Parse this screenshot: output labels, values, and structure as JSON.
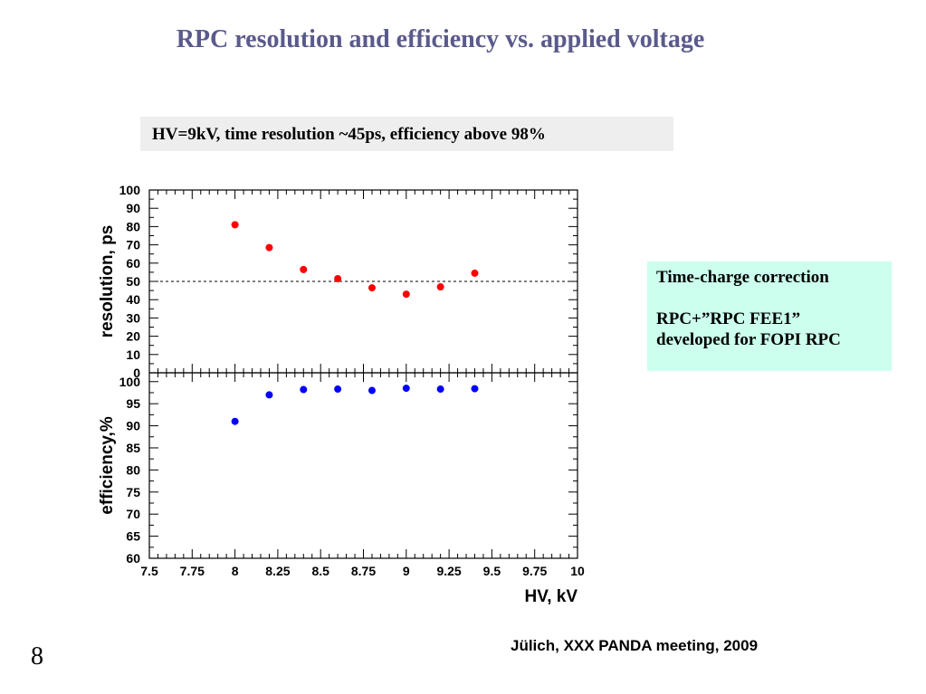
{
  "slide": {
    "title": "RPC resolution and efficiency vs. applied voltage",
    "note": "HV=9kV, time resolution ~45ps, efficiency above 98%",
    "callout_line1": "Time-charge correction",
    "callout_line2": "RPC+”RPC FEE1”",
    "callout_line3": "developed for FOPI RPC",
    "footer": "Jülich, XXX PANDA meeting, 2009",
    "page_number": "8"
  },
  "colors": {
    "title": "#5a5a8c",
    "note_bg": "#eeeeee",
    "callout_bg": "#ccffee",
    "resolution_points": "#ff0000",
    "efficiency_points": "#0000ff"
  },
  "chart_data": [
    {
      "type": "scatter",
      "panel": "top",
      "ylabel": "resolution, ps",
      "xlabel": "",
      "xlim": [
        7.5,
        10
      ],
      "ylim": [
        0,
        100
      ],
      "yticks": [
        0,
        10,
        20,
        30,
        40,
        50,
        60,
        70,
        80,
        90,
        100
      ],
      "reference_line": 50,
      "series": [
        {
          "color": "#ff0000",
          "x": [
            8.0,
            8.2,
            8.4,
            8.6,
            8.8,
            9.0,
            9.2,
            9.4
          ],
          "y": [
            81,
            68.5,
            56.5,
            51.5,
            46.5,
            43,
            47,
            54.5
          ]
        }
      ]
    },
    {
      "type": "scatter",
      "panel": "bottom",
      "ylabel": "efficiency,%",
      "xlabel": "HV, kV",
      "xlim": [
        7.5,
        10
      ],
      "ylim": [
        60,
        102
      ],
      "yticks": [
        60,
        65,
        70,
        75,
        80,
        85,
        90,
        95,
        100
      ],
      "xticks": [
        "7.5",
        "7.75",
        "8",
        "8.25",
        "8.5",
        "8.75",
        "9",
        "9.25",
        "9.5",
        "9.75",
        "10"
      ],
      "series": [
        {
          "color": "#0000ff",
          "x": [
            8.0,
            8.2,
            8.4,
            8.6,
            8.8,
            9.0,
            9.2,
            9.4
          ],
          "y": [
            91,
            97,
            98.2,
            98.3,
            98,
            98.5,
            98.3,
            98.4
          ]
        }
      ]
    }
  ]
}
